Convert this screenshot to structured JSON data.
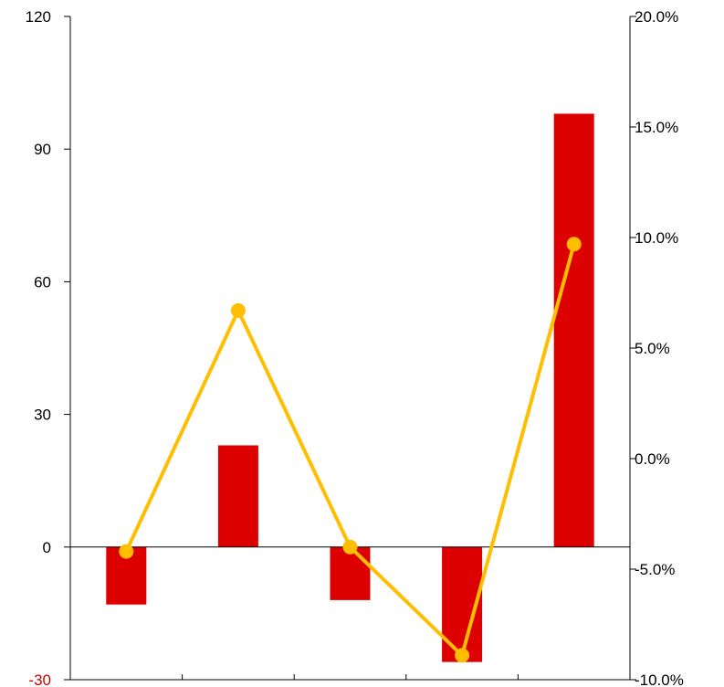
{
  "chart_data": {
    "type": "bar",
    "title": "",
    "xlabel": "",
    "ylabel": "",
    "categories": [
      "",
      "",
      "",
      "",
      ""
    ],
    "series": [
      {
        "type": "bar",
        "axis": "left",
        "color": "#dd0000",
        "values": [
          -13,
          23,
          -12,
          -26,
          98
        ]
      },
      {
        "type": "line",
        "axis": "right",
        "color": "#ffbf00",
        "values": [
          -4.2,
          6.7,
          -4.0,
          -8.9,
          9.7
        ]
      }
    ],
    "ylim": [
      -30,
      120
    ],
    "yticks": [
      -30,
      0,
      30,
      60,
      90,
      120
    ],
    "ytick_labels": [
      "-30",
      "0",
      "30",
      "60",
      "90",
      "120"
    ],
    "y2lim": [
      -10,
      20
    ],
    "y2ticks": [
      -10,
      -5,
      0,
      5,
      10,
      15,
      20
    ],
    "y2tick_labels": [
      "-10.0%",
      "-5.0%",
      "0.0%",
      "5.0%",
      "10.0%",
      "15.0%",
      "20.0%"
    ],
    "negative_label_color": "#cc0000",
    "grid": false,
    "legend": "none"
  }
}
